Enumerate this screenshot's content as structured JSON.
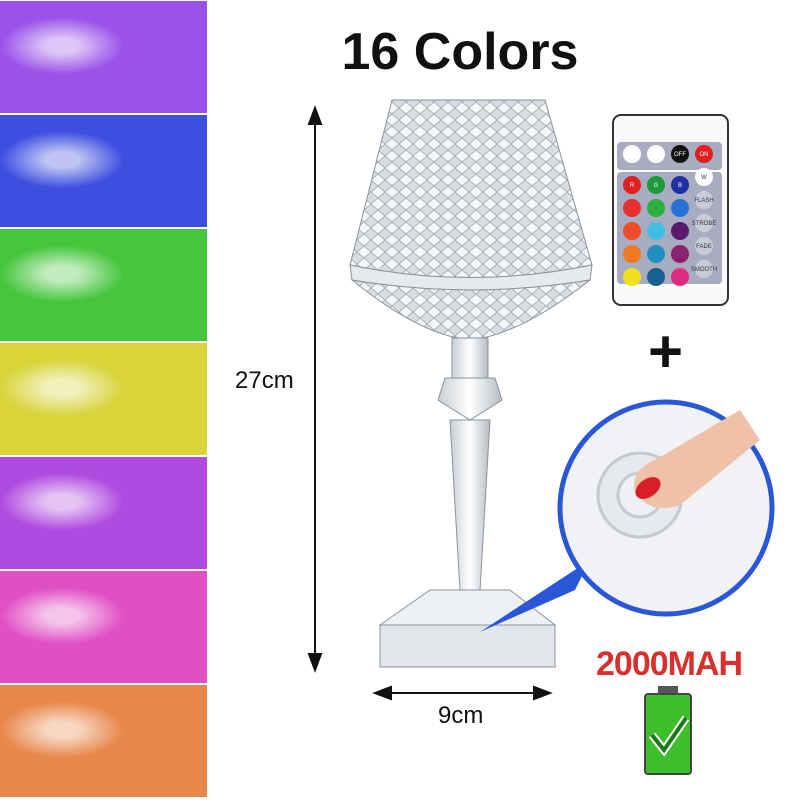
{
  "title": "16 Colors",
  "dimensions": {
    "height": "27cm",
    "width": "9cm"
  },
  "battery": {
    "capacity": "2000MAH",
    "icon": "battery-full-check-icon",
    "color": "#3cbf2a"
  },
  "plus": "+",
  "color_tiles": [
    "#9a52e8",
    "#3e4fe0",
    "#46c63c",
    "#d8d43a",
    "#b04be0",
    "#e04fc4",
    "#e8874a"
  ],
  "remote": {
    "buttons": [
      "OFF",
      "ON",
      "R",
      "G",
      "B",
      "W",
      "FLASH",
      "STROBE",
      "FADE",
      "SMOOTH"
    ],
    "color_keys": [
      "#e02020",
      "#1c9a3a",
      "#2030a0",
      "#e83030",
      "#2ab040",
      "#2a70d8",
      "#f04a2a",
      "#40c0e0",
      "#5a1a6a",
      "#f07a20",
      "#2090c0",
      "#8a2070",
      "#f0e020",
      "#1a6090",
      "#e02a80"
    ]
  },
  "touch_button_inset": {
    "icon": "finger-touch-icon",
    "border_color": "#2a56d8"
  }
}
